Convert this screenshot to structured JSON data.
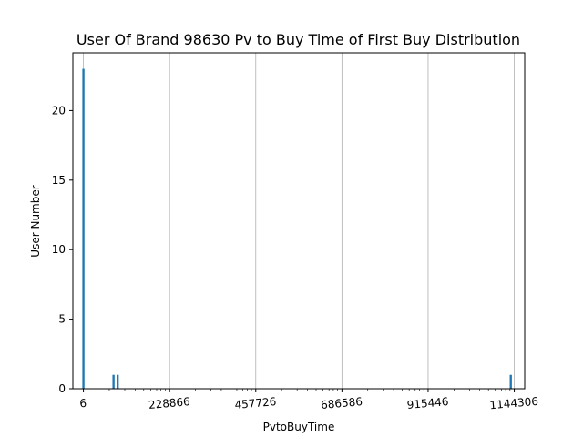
{
  "chart_data": {
    "type": "bar",
    "title": "User Of Brand 98630 Pv to Buy Time of First Buy Distribution",
    "xlabel": "PvtoBuyTime",
    "ylabel": "User Number",
    "xlim": [
      -28000,
      1172000
    ],
    "ylim": [
      0,
      24.15
    ],
    "x_ticks": [
      6,
      228866,
      457726,
      686586,
      915446,
      1144306
    ],
    "x_tick_labels": [
      "6",
      "228866",
      "457726",
      "686586",
      "915446",
      "1144306"
    ],
    "y_ticks": [
      0,
      5,
      10,
      15,
      20
    ],
    "y_tick_labels": [
      "0",
      "5",
      "10",
      "15",
      "20"
    ],
    "grid": "x",
    "bar_color": "#1f77b4",
    "bar_width": 5700,
    "bars": [
      {
        "x": 6,
        "value": 23
      },
      {
        "x": 80000,
        "value": 1
      },
      {
        "x": 91000,
        "value": 1
      },
      {
        "x": 1135000,
        "value": 1
      }
    ]
  }
}
